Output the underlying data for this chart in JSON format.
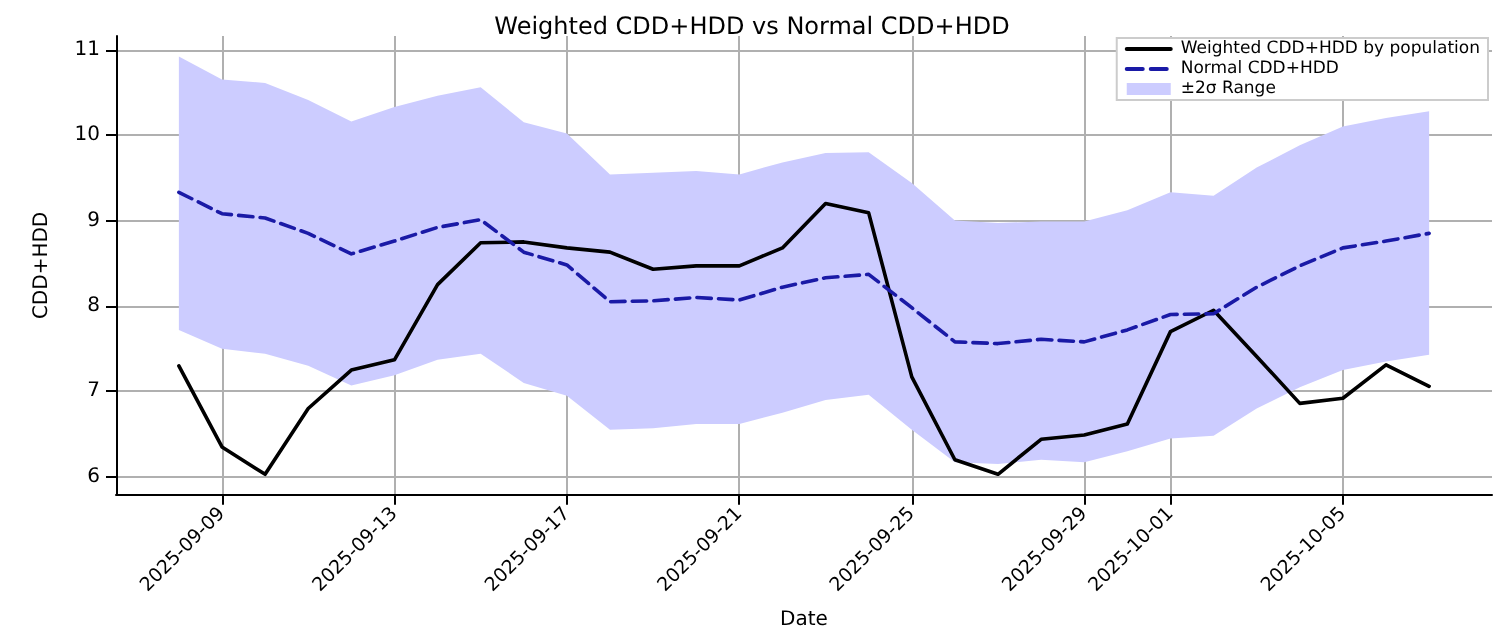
{
  "chart_data": {
    "type": "line",
    "title": "Weighted CDD+HDD vs Normal CDD+HDD",
    "xlabel": "Date",
    "ylabel": "CDD+HDD",
    "x": [
      "2025-09-08",
      "2025-09-09",
      "2025-09-10",
      "2025-09-11",
      "2025-09-12",
      "2025-09-13",
      "2025-09-14",
      "2025-09-15",
      "2025-09-16",
      "2025-09-17",
      "2025-09-18",
      "2025-09-19",
      "2025-09-20",
      "2025-09-21",
      "2025-09-22",
      "2025-09-23",
      "2025-09-24",
      "2025-09-25",
      "2025-09-26",
      "2025-09-27",
      "2025-09-28",
      "2025-09-29",
      "2025-09-30",
      "2025-10-01",
      "2025-10-02",
      "2025-10-03",
      "2025-10-04",
      "2025-10-05",
      "2025-10-06",
      "2025-10-07"
    ],
    "series": [
      {
        "name": "Weighted CDD+HDD by population",
        "color": "#000000",
        "line_style": "solid",
        "values": [
          7.3,
          6.35,
          6.03,
          6.8,
          7.25,
          7.37,
          8.25,
          8.74,
          8.75,
          8.68,
          8.63,
          8.43,
          8.47,
          8.47,
          8.68,
          9.2,
          9.09,
          7.17,
          6.2,
          6.03,
          6.44,
          6.49,
          6.62,
          7.7,
          7.95,
          7.41,
          6.86,
          6.92,
          7.31,
          7.06
        ]
      },
      {
        "name": "Normal CDD+HDD",
        "color": "#1a1aa6",
        "line_style": "dashed",
        "values": [
          9.33,
          9.08,
          9.03,
          8.85,
          8.61,
          8.76,
          8.92,
          9.01,
          8.63,
          8.48,
          8.05,
          8.06,
          8.1,
          8.07,
          8.22,
          8.33,
          8.37,
          7.98,
          7.58,
          7.56,
          7.61,
          7.58,
          7.72,
          7.9,
          7.91,
          8.22,
          8.47,
          8.68,
          8.76,
          8.85
        ]
      },
      {
        "name": "±2σ Range",
        "type": "area",
        "color": "#ccccff",
        "values": [
          null,
          null,
          null,
          null,
          null,
          null,
          null,
          null,
          null,
          null,
          null,
          null,
          null,
          null,
          null,
          null,
          null,
          null,
          null,
          null,
          null,
          null,
          null,
          null,
          null,
          null,
          null,
          null,
          null,
          null
        ],
        "lower": [
          7.72,
          7.5,
          7.44,
          7.3,
          7.07,
          7.19,
          7.37,
          7.44,
          7.1,
          6.95,
          6.55,
          6.57,
          6.62,
          6.62,
          6.75,
          6.9,
          6.96,
          6.55,
          6.17,
          6.15,
          6.2,
          6.17,
          6.3,
          6.45,
          6.48,
          6.8,
          7.05,
          7.25,
          7.35,
          7.43
        ],
        "upper": [
          10.92,
          10.65,
          10.61,
          10.41,
          10.16,
          10.33,
          10.46,
          10.56,
          10.15,
          10.02,
          9.54,
          9.56,
          9.58,
          9.54,
          9.68,
          9.79,
          9.8,
          9.44,
          9.0,
          8.97,
          8.99,
          8.99,
          9.12,
          9.33,
          9.29,
          9.62,
          9.88,
          10.1,
          10.2,
          10.28
        ]
      }
    ],
    "xlim": [
      "2025-09-06T13:00",
      "2025-10-08T11:00"
    ],
    "xticks": [
      "2025-09-09",
      "2025-09-13",
      "2025-09-17",
      "2025-09-21",
      "2025-09-25",
      "2025-09-29",
      "2025-10-01",
      "2025-10-05"
    ],
    "ylim": [
      5.79,
      11.16
    ],
    "yticks": [
      6,
      7,
      8,
      9,
      10,
      11
    ],
    "grid": true,
    "legend": "top right",
    "marker": "none"
  }
}
